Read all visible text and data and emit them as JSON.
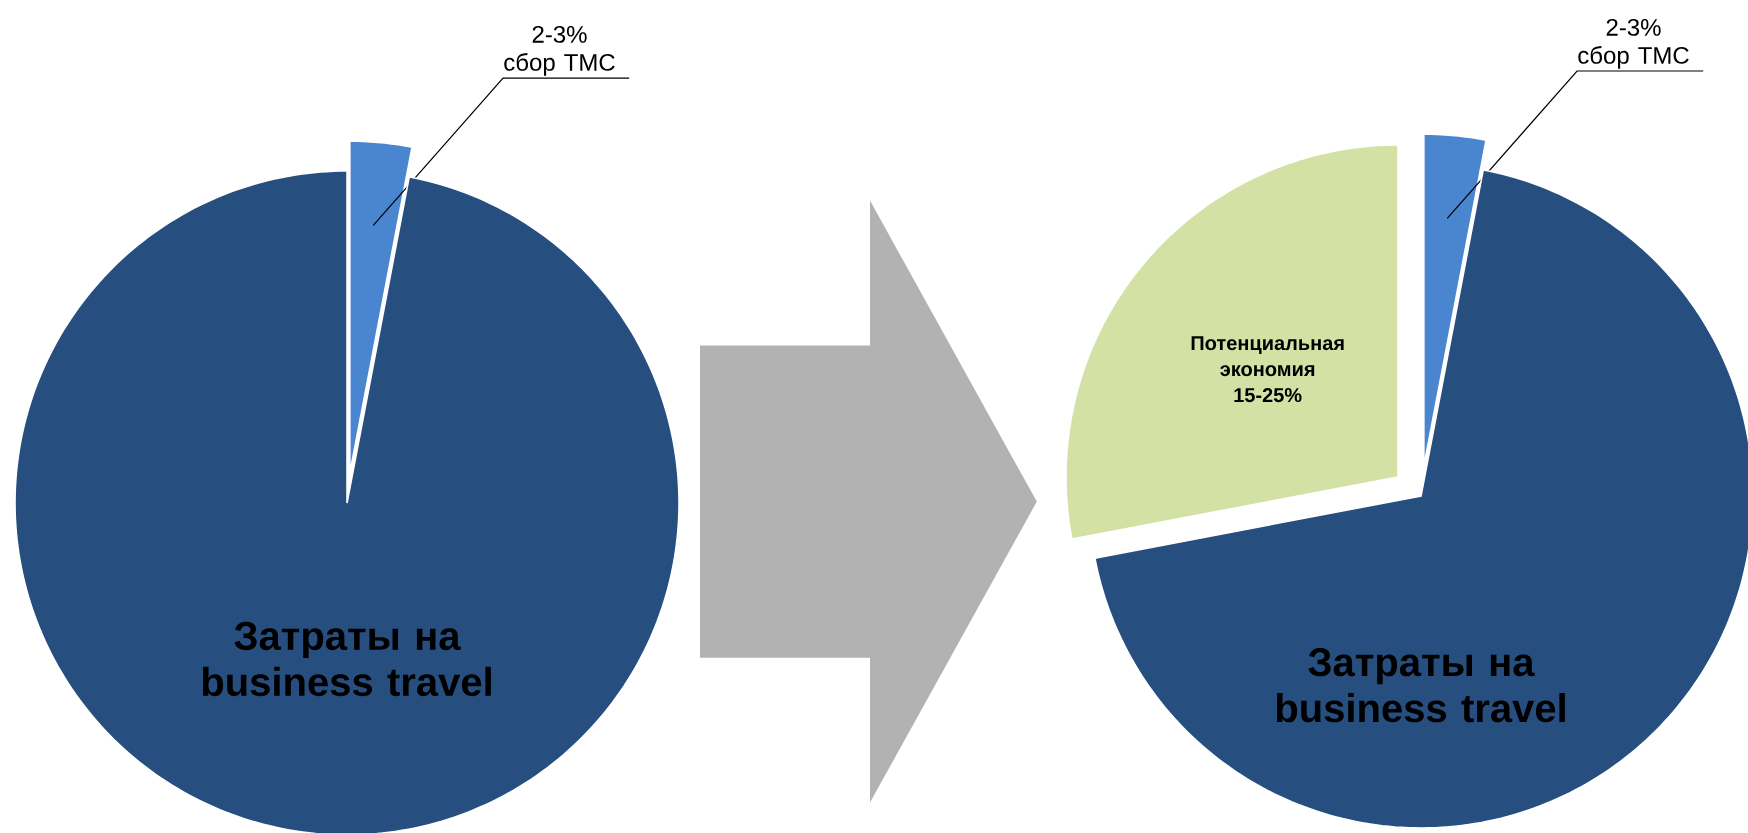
{
  "chart_data": [
    {
      "type": "pie",
      "categories": [
        "2-3% сбор TMC",
        "Затраты на business travel"
      ],
      "values": [
        3,
        97
      ],
      "colors": [
        "#4a86d0",
        "#264f80"
      ]
    },
    {
      "type": "pie",
      "categories": [
        "2-3% сбор TMC",
        "Затраты на business travel",
        "Потенциальная экономия 15-25%"
      ],
      "values": [
        3,
        69,
        28
      ],
      "colors": [
        "#4a86d0",
        "#264f80",
        "#d3e2a4"
      ]
    }
  ]
}
